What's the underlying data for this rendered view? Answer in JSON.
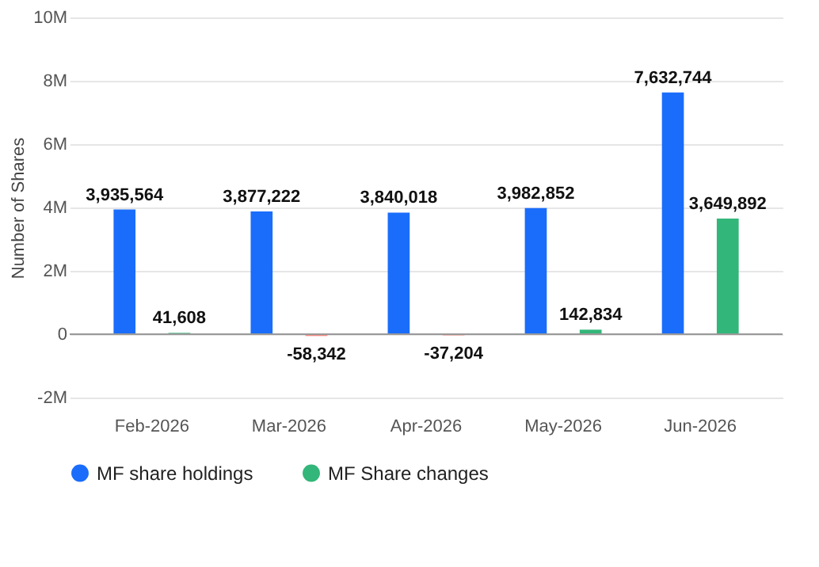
{
  "chart_data": {
    "type": "bar",
    "ylabel": "Number of Shares",
    "categories": [
      "Feb-2026",
      "Mar-2026",
      "Apr-2026",
      "May-2026",
      "Jun-2026"
    ],
    "series": [
      {
        "name": "MF share holdings",
        "color": "#1a6dfb",
        "values": [
          3935564,
          3877222,
          3840018,
          3982852,
          7632744
        ],
        "value_labels": [
          "3,935,564",
          "3,877,222",
          "3,840,018",
          "3,982,852",
          "7,632,744"
        ]
      },
      {
        "name": "MF Share changes",
        "color": "#33b679",
        "colors": [
          "#33b679",
          "#f28b82",
          "#f28b82",
          "#33b679",
          "#33b679"
        ],
        "values": [
          41608,
          -58342,
          -37204,
          142834,
          3649892
        ],
        "value_labels": [
          "41,608",
          "-58,342",
          "-37,204",
          "142,834",
          "3,649,892"
        ]
      }
    ],
    "ylim": [
      -2000000,
      10000000
    ],
    "yticks": [
      {
        "value": -2000000,
        "label": "-2M"
      },
      0,
      {
        "value": 2000000,
        "label": "2M"
      },
      {
        "value": 4000000,
        "label": "4M"
      },
      {
        "value": 6000000,
        "label": "6M"
      },
      {
        "value": 8000000,
        "label": "8M"
      },
      {
        "value": 10000000,
        "label": "10M"
      }
    ],
    "grid": "y",
    "legend": "bottom"
  }
}
